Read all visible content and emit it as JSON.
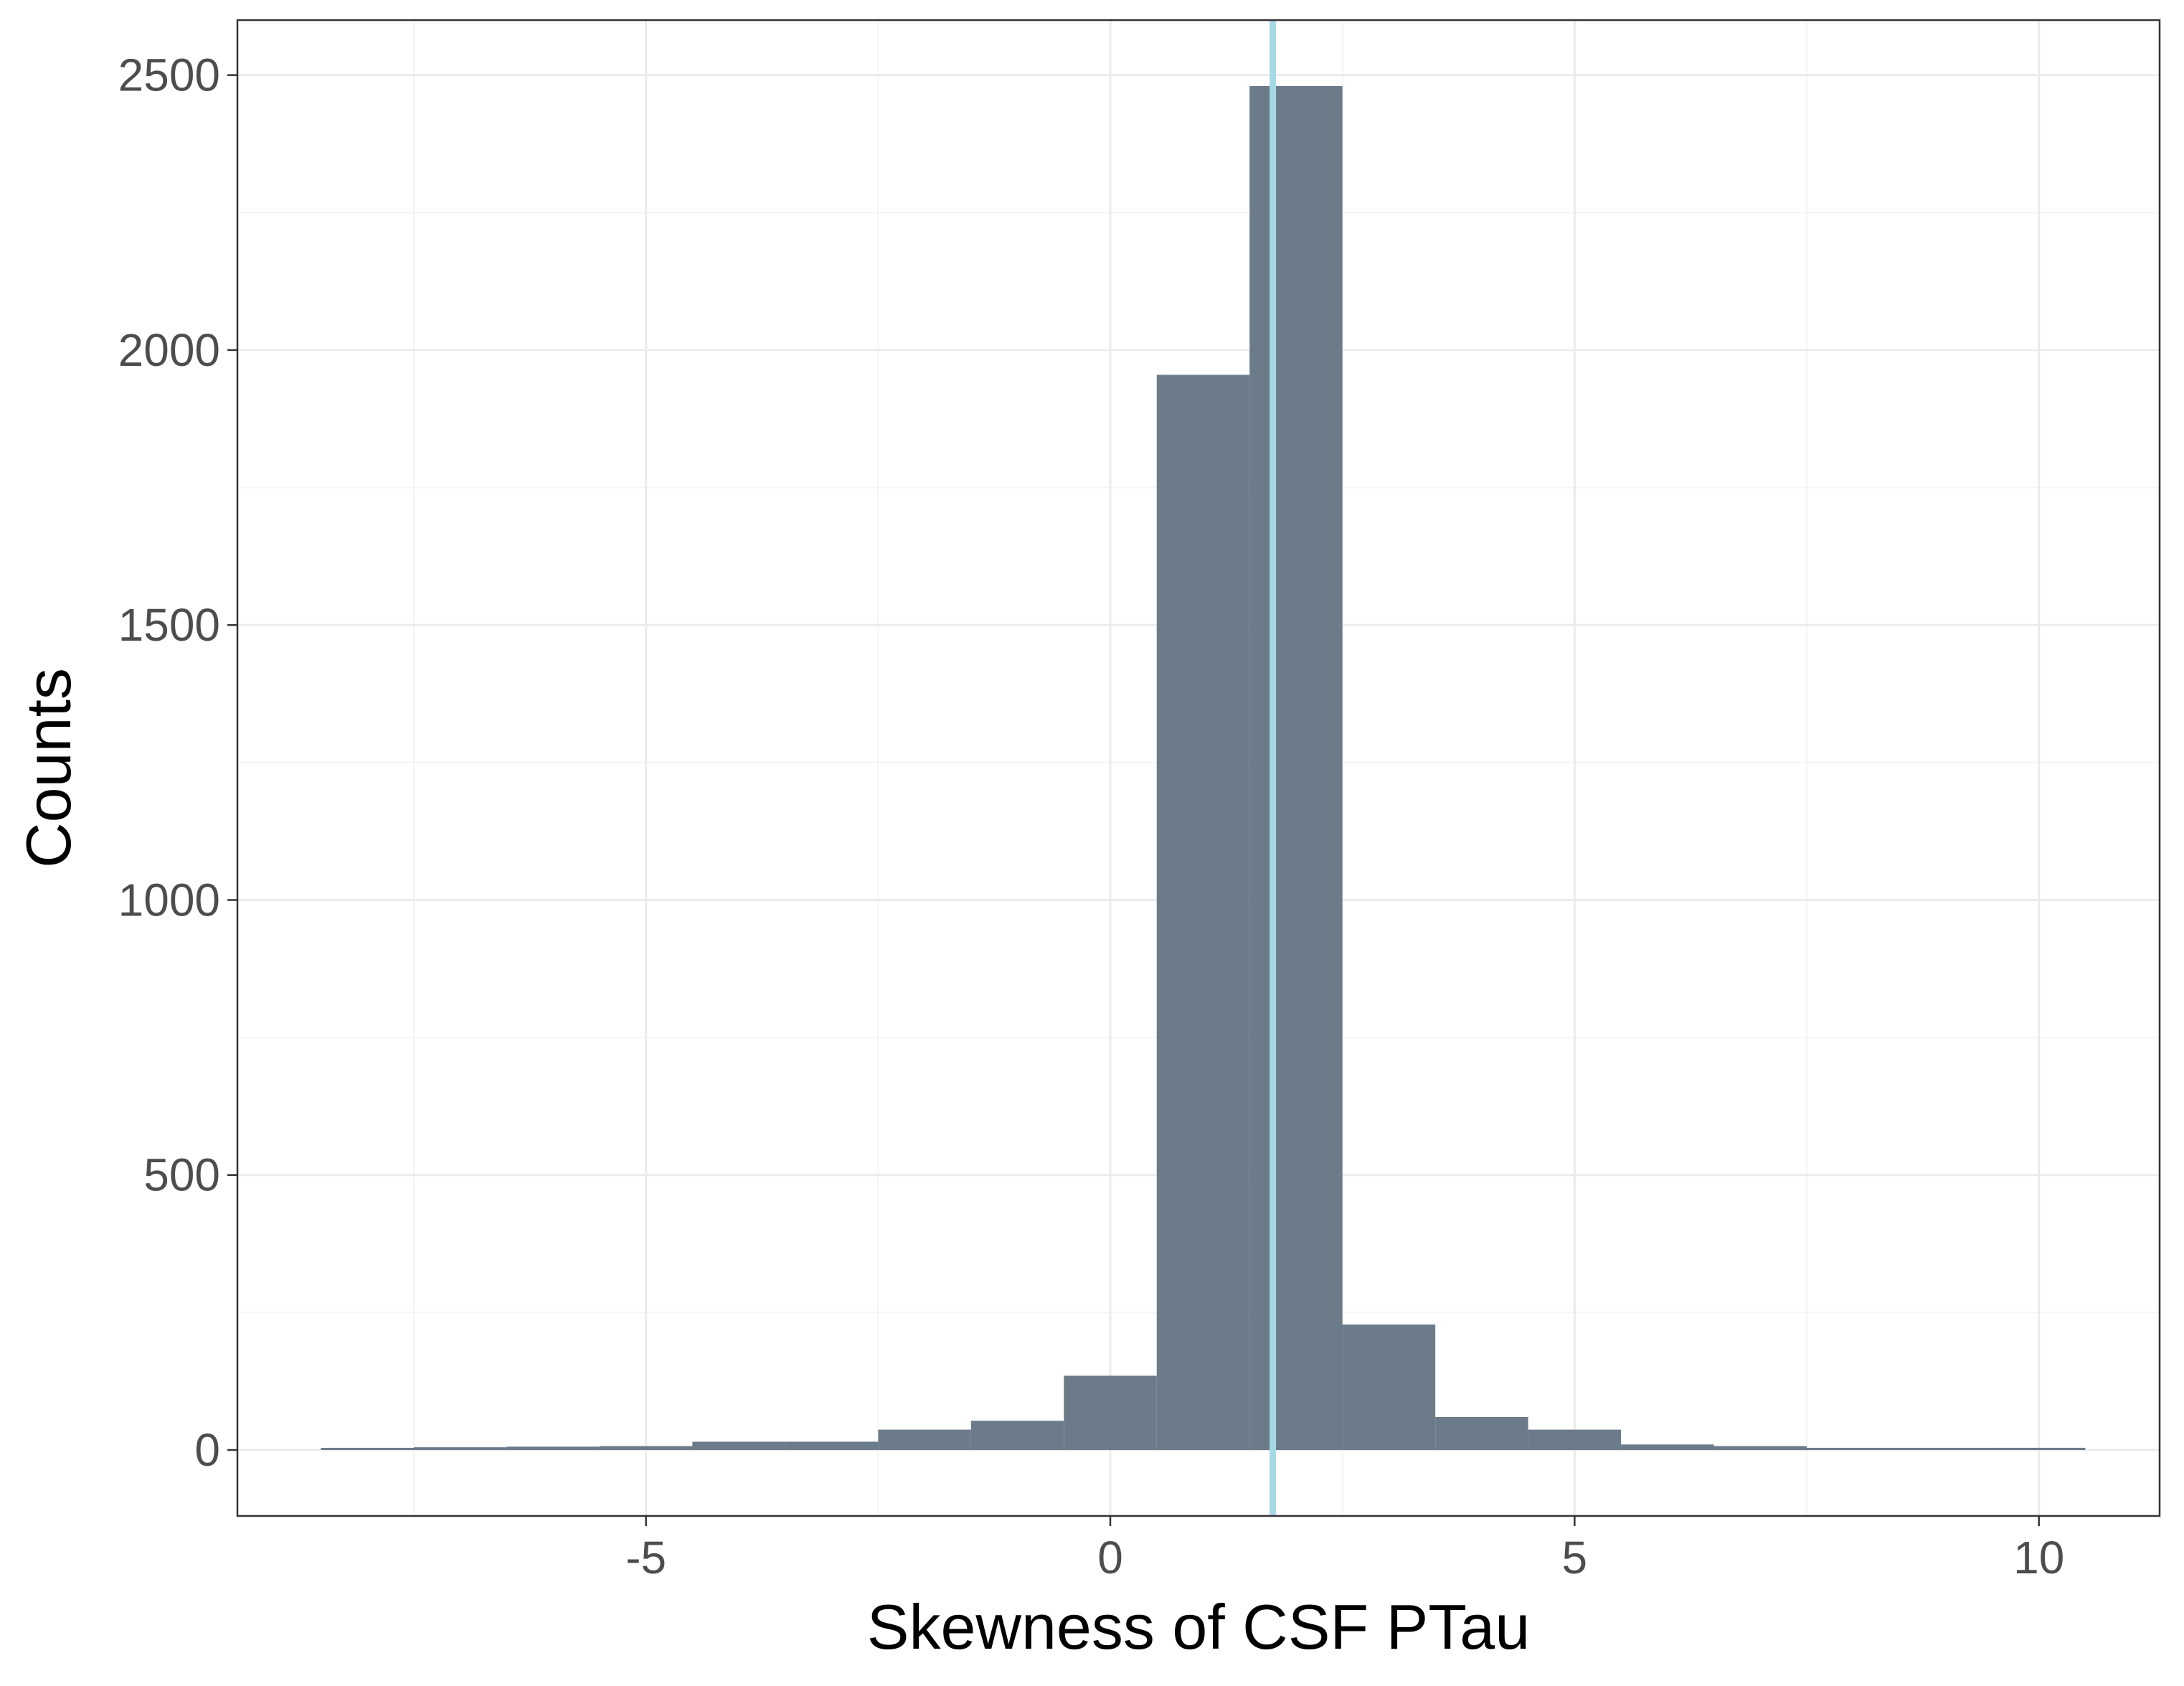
{
  "chart_data": {
    "type": "bar",
    "subtype": "histogram",
    "xlabel": "Skewness of CSF PTau",
    "ylabel": "Counts",
    "xlim": [
      -9.4,
      11.3
    ],
    "ylim": [
      -120,
      2600
    ],
    "x_ticks": [
      -5,
      0,
      5,
      10
    ],
    "x_tick_labels": [
      "-5",
      "0",
      "5",
      "10"
    ],
    "y_ticks": [
      0,
      500,
      1000,
      1500,
      2000,
      2500
    ],
    "y_tick_labels": [
      "0",
      "500",
      "1000",
      "1500",
      "2000",
      "2500"
    ],
    "bin_width": 1,
    "bins": [
      {
        "x0": -8.5,
        "x1": -7.5,
        "count": 3
      },
      {
        "x0": -7.5,
        "x1": -6.5,
        "count": 5
      },
      {
        "x0": -6.5,
        "x1": -5.5,
        "count": 6
      },
      {
        "x0": -5.5,
        "x1": -4.5,
        "count": 7
      },
      {
        "x0": -4.5,
        "x1": -3.5,
        "count": 15
      },
      {
        "x0": -3.5,
        "x1": -2.5,
        "count": 15
      },
      {
        "x0": -2.5,
        "x1": -1.5,
        "count": 37
      },
      {
        "x0": -1.5,
        "x1": -0.5,
        "count": 53
      },
      {
        "x0": -0.5,
        "x1": 0.5,
        "count": 135
      },
      {
        "x0": 0.5,
        "x1": 1.5,
        "count": 1955
      },
      {
        "x0": 1.5,
        "x1": 2.5,
        "count": 2480
      },
      {
        "x0": 2.5,
        "x1": 3.5,
        "count": 228
      },
      {
        "x0": 3.5,
        "x1": 4.5,
        "count": 60
      },
      {
        "x0": 4.5,
        "x1": 5.5,
        "count": 37
      },
      {
        "x0": 5.5,
        "x1": 6.5,
        "count": 10
      },
      {
        "x0": 6.5,
        "x1": 7.5,
        "count": 7
      },
      {
        "x0": 7.5,
        "x1": 8.5,
        "count": 3
      },
      {
        "x0": 8.5,
        "x1": 9.5,
        "count": 2
      },
      {
        "x0": 9.5,
        "x1": 10.5,
        "count": 4
      }
    ],
    "reference_line": {
      "x": 1.75,
      "orientation": "vertical"
    },
    "grid": true,
    "legend": "none",
    "colors": {
      "bar_fill": "#6b7b8a",
      "reference_line": "#a6d8e6",
      "grid_major": "#ebebeb",
      "grid_minor": "#f4f4f4",
      "panel_border": "#333333",
      "tick_text": "#4d4d4d",
      "axis_title": "#000000",
      "background": "#ffffff"
    }
  }
}
